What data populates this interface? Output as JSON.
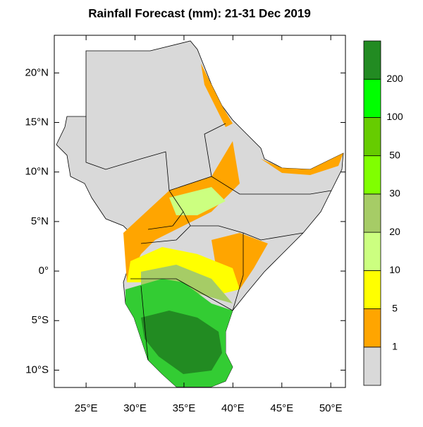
{
  "title": "Rainfall Forecast (mm): 21-31 Dec 2019",
  "map": {
    "xlim": [
      21.75,
      51.5
    ],
    "ylim": [
      -11.75,
      23.8
    ],
    "xticks": [
      {
        "value": 25,
        "label": "25°E"
      },
      {
        "value": 30,
        "label": "30°E"
      },
      {
        "value": 35,
        "label": "35°E"
      },
      {
        "value": 40,
        "label": "40°E"
      },
      {
        "value": 45,
        "label": "45°E"
      },
      {
        "value": 50,
        "label": "50°E"
      }
    ],
    "yticks": [
      {
        "value": 20,
        "label": "20°N"
      },
      {
        "value": 15,
        "label": "15°N"
      },
      {
        "value": 10,
        "label": "10°N"
      },
      {
        "value": 5,
        "label": "5°N"
      },
      {
        "value": 0,
        "label": "0°"
      },
      {
        "value": -5,
        "label": "5°S"
      },
      {
        "value": -10,
        "label": "10°S"
      }
    ]
  },
  "colorbar": {
    "levels": [
      1,
      5,
      10,
      20,
      30,
      50,
      100,
      200
    ],
    "colors": [
      "#d9d9d9",
      "#ffa500",
      "#ffff00",
      "#ccff80",
      "#a6cc66",
      "#80ff00",
      "#66cc00",
      "#00ff00",
      "#228b22"
    ]
  }
}
